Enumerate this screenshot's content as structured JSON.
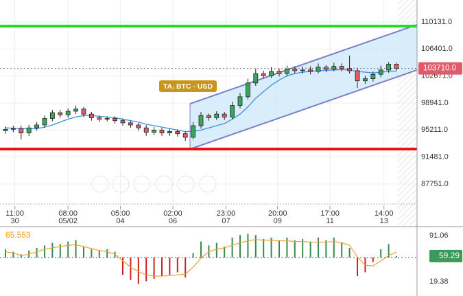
{
  "chart_data": [
    {
      "type": "candlestick",
      "xlim": [
        -0.7,
        52.63
      ],
      "ylim": [
        84700,
        113170
      ],
      "yticks": [
        {
          "value": 110131,
          "label": "110131.0"
        },
        {
          "value": 106401,
          "label": "106401.0"
        },
        {
          "value": 102671,
          "label": "102671.0"
        },
        {
          "value": 98941,
          "label": "98941.0"
        },
        {
          "value": 95211,
          "label": "95211.0"
        },
        {
          "value": 91481,
          "label": "91481.0"
        },
        {
          "value": 87751,
          "label": "87751.0"
        }
      ],
      "xticks": [
        {
          "value": 1.2,
          "label": "11:00"
        },
        {
          "value": 8,
          "label": "08:00"
        },
        {
          "value": 14.7,
          "label": "05:00"
        },
        {
          "value": 21.4,
          "label": "02:00"
        },
        {
          "value": 28.2,
          "label": "23:00"
        },
        {
          "value": 34.8,
          "label": "20:00"
        },
        {
          "value": 41.5,
          "label": "17:00"
        },
        {
          "value": 48.4,
          "label": "14:00"
        }
      ],
      "xtick_dates": [
        "30",
        "05/02",
        "04",
        "06",
        "07",
        "09",
        "11",
        "13"
      ],
      "grid": true,
      "up_color": "#3aa55d",
      "down_color": "#e05a6a",
      "candles": {
        "open": [
          95100,
          95300,
          95400,
          94800,
          95500,
          95900,
          96800,
          97600,
          97300,
          97800,
          98100,
          97400,
          96900,
          96700,
          96800,
          96500,
          96200,
          95900,
          95500,
          94900,
          95200,
          94800,
          95000,
          94700,
          94200,
          95800,
          97200,
          96900,
          97400,
          97000,
          98600,
          99800,
          101700,
          103000,
          102700,
          103300,
          103000,
          103600,
          103400,
          103500,
          103300,
          103900,
          103600,
          104000,
          103700,
          103400,
          102000,
          102300,
          102900,
          103500,
          104300
        ],
        "high": [
          95700,
          95800,
          95800,
          95900,
          96300,
          97200,
          98000,
          98000,
          98200,
          98600,
          98400,
          97700,
          97200,
          97100,
          97100,
          96800,
          96500,
          96200,
          95900,
          95600,
          95500,
          95400,
          95300,
          95000,
          96300,
          97700,
          97500,
          97800,
          97700,
          99100,
          100300,
          102300,
          103700,
          103400,
          103900,
          103700,
          104100,
          104000,
          104000,
          104000,
          104400,
          104200,
          104500,
          104400,
          105500,
          103800,
          102700,
          103300,
          104100,
          104600,
          104500
        ],
        "low": [
          94700,
          94900,
          93900,
          94400,
          95100,
          95500,
          96400,
          96900,
          96900,
          97400,
          97000,
          96500,
          96300,
          96400,
          96100,
          95800,
          95500,
          95100,
          94400,
          94500,
          94400,
          94400,
          94300,
          93700,
          93900,
          95400,
          96500,
          96600,
          96600,
          96700,
          98200,
          99400,
          101300,
          102300,
          102400,
          102600,
          102600,
          103000,
          103000,
          102900,
          103000,
          103200,
          103300,
          103300,
          103000,
          101000,
          101600,
          101900,
          102500,
          103100,
          103400
        ],
        "close": [
          95300,
          95400,
          94800,
          95500,
          95900,
          96800,
          97600,
          97300,
          97800,
          98100,
          97400,
          96900,
          96700,
          96800,
          96500,
          96200,
          95900,
          95500,
          94900,
          95200,
          94800,
          95000,
          94700,
          94200,
          95800,
          97200,
          96900,
          97400,
          97000,
          98600,
          99800,
          101700,
          103000,
          102700,
          103300,
          103000,
          103600,
          103400,
          103500,
          103300,
          103900,
          103600,
          104000,
          103700,
          103400,
          102000,
          102300,
          102900,
          103500,
          104300,
          103710
        ]
      },
      "ma": {
        "color": "#3d8fe0",
        "values": [
          95500,
          95450,
          95400,
          95350,
          95400,
          95600,
          95900,
          96300,
          96700,
          97000,
          97200,
          97200,
          97100,
          97000,
          96900,
          96700,
          96500,
          96300,
          96000,
          95800,
          95600,
          95400,
          95200,
          95000,
          95000,
          95200,
          95500,
          95800,
          96100,
          96700,
          97400,
          98400,
          99600,
          100500,
          101400,
          102100,
          102700,
          103000,
          103200,
          103300,
          103400,
          103450,
          103500,
          103550,
          103500,
          103300,
          103200,
          103100,
          103200,
          103300,
          103350
        ]
      },
      "hlines": [
        {
          "value": 109562,
          "color": "#22dd22"
        },
        {
          "value": 92572,
          "color": "#ee1111"
        }
      ],
      "channel": {
        "x": [
          23.6,
          52.6
        ],
        "upper": [
          98837,
          109751
        ],
        "lower": [
          92572,
          103487
        ],
        "color": "#7a7fc8",
        "fill": "#cfe8fa"
      },
      "price_line": {
        "value": 103710,
        "label": "103710.0",
        "color": "#e05a6a"
      },
      "annotation": "TA. BTC - USD"
    },
    {
      "type": "bar",
      "ylim": [
        -3,
        103
      ],
      "yticks": [
        91.06,
        19.38
      ],
      "reference": 57,
      "up_color": "#3a8a4a",
      "down_color": "#cc2020",
      "values": [
        70,
        66,
        62,
        68,
        72,
        76,
        80,
        78,
        82,
        84,
        74,
        70,
        68,
        70,
        66,
        30,
        22,
        16,
        20,
        24,
        28,
        30,
        34,
        26,
        64,
        82,
        76,
        80,
        74,
        88,
        92,
        94,
        92,
        86,
        88,
        84,
        88,
        84,
        86,
        82,
        88,
        84,
        88,
        80,
        72,
        28,
        34,
        50,
        70,
        78,
        59.29
      ],
      "signal": {
        "color": "#f0a030",
        "values": [
          66,
          64,
          60,
          62,
          66,
          70,
          72,
          74,
          76,
          77,
          74,
          71,
          68,
          66,
          62,
          52,
          42,
          35,
          30,
          28,
          28,
          29,
          30,
          31,
          42,
          56,
          66,
          70,
          72,
          76,
          80,
          83,
          85,
          84,
          84,
          83,
          83,
          82,
          82,
          81,
          81,
          81,
          82,
          80,
          76,
          58,
          45,
          44,
          52,
          60,
          65.553
        ]
      }
    }
  ]
}
